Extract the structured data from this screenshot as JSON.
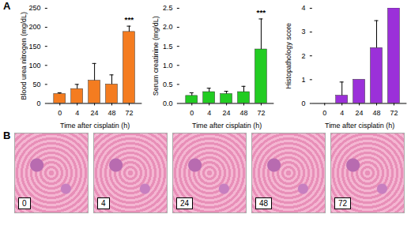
{
  "chart_data": [
    {
      "type": "bar",
      "categories": [
        "0",
        "4",
        "24",
        "48",
        "72"
      ],
      "values": [
        25,
        38,
        60,
        50,
        188
      ],
      "errors": [
        3,
        12,
        45,
        25,
        15
      ],
      "color": "#f47c20",
      "xlabel": "Time after cisplatin (h)",
      "ylabel": "Blood urea nitrogen (mg/dL)",
      "ylim": [
        0,
        250
      ],
      "yticks": [
        0,
        50,
        100,
        150,
        200,
        250
      ],
      "annotations": [
        {
          "category": "72",
          "text": "***"
        }
      ]
    },
    {
      "type": "bar",
      "categories": [
        "0",
        "4",
        "24",
        "48",
        "72"
      ],
      "values": [
        0.2,
        0.3,
        0.25,
        0.3,
        1.42
      ],
      "errors": [
        0.08,
        0.1,
        0.07,
        0.15,
        0.8
      ],
      "color": "#22cc22",
      "xlabel": "Time after cisplatin (h)",
      "ylabel": "Serum creatinine (mg/dL)",
      "ylim": [
        0,
        2.5
      ],
      "yticks": [
        {
          "value": 0,
          "label": "0.0"
        },
        {
          "value": 0.5,
          "label": "0.5"
        },
        {
          "value": 1,
          "label": "1.0"
        },
        {
          "value": 1.5,
          "label": "1.5"
        },
        {
          "value": 2,
          "label": "2.0"
        },
        {
          "value": 2.5,
          "label": "2.5"
        }
      ],
      "annotations": [
        {
          "category": "72",
          "text": "***"
        }
      ]
    },
    {
      "type": "bar",
      "categories": [
        "0",
        "4",
        "24",
        "48",
        "72"
      ],
      "values": [
        0,
        0.33,
        1,
        2.33,
        4
      ],
      "errors": [
        0,
        0.57,
        0,
        1.15,
        0
      ],
      "color": "#9b30d9",
      "xlabel": "Time after cisplatin (h)",
      "ylabel": "Histopathology score",
      "ylim": [
        0,
        4
      ],
      "yticks": [
        0,
        1,
        2,
        3,
        4
      ],
      "annotations": []
    }
  ],
  "panel_labels": [
    "A",
    "B"
  ],
  "images": {
    "labels": [
      "0",
      "4",
      "24",
      "48",
      "72"
    ]
  }
}
